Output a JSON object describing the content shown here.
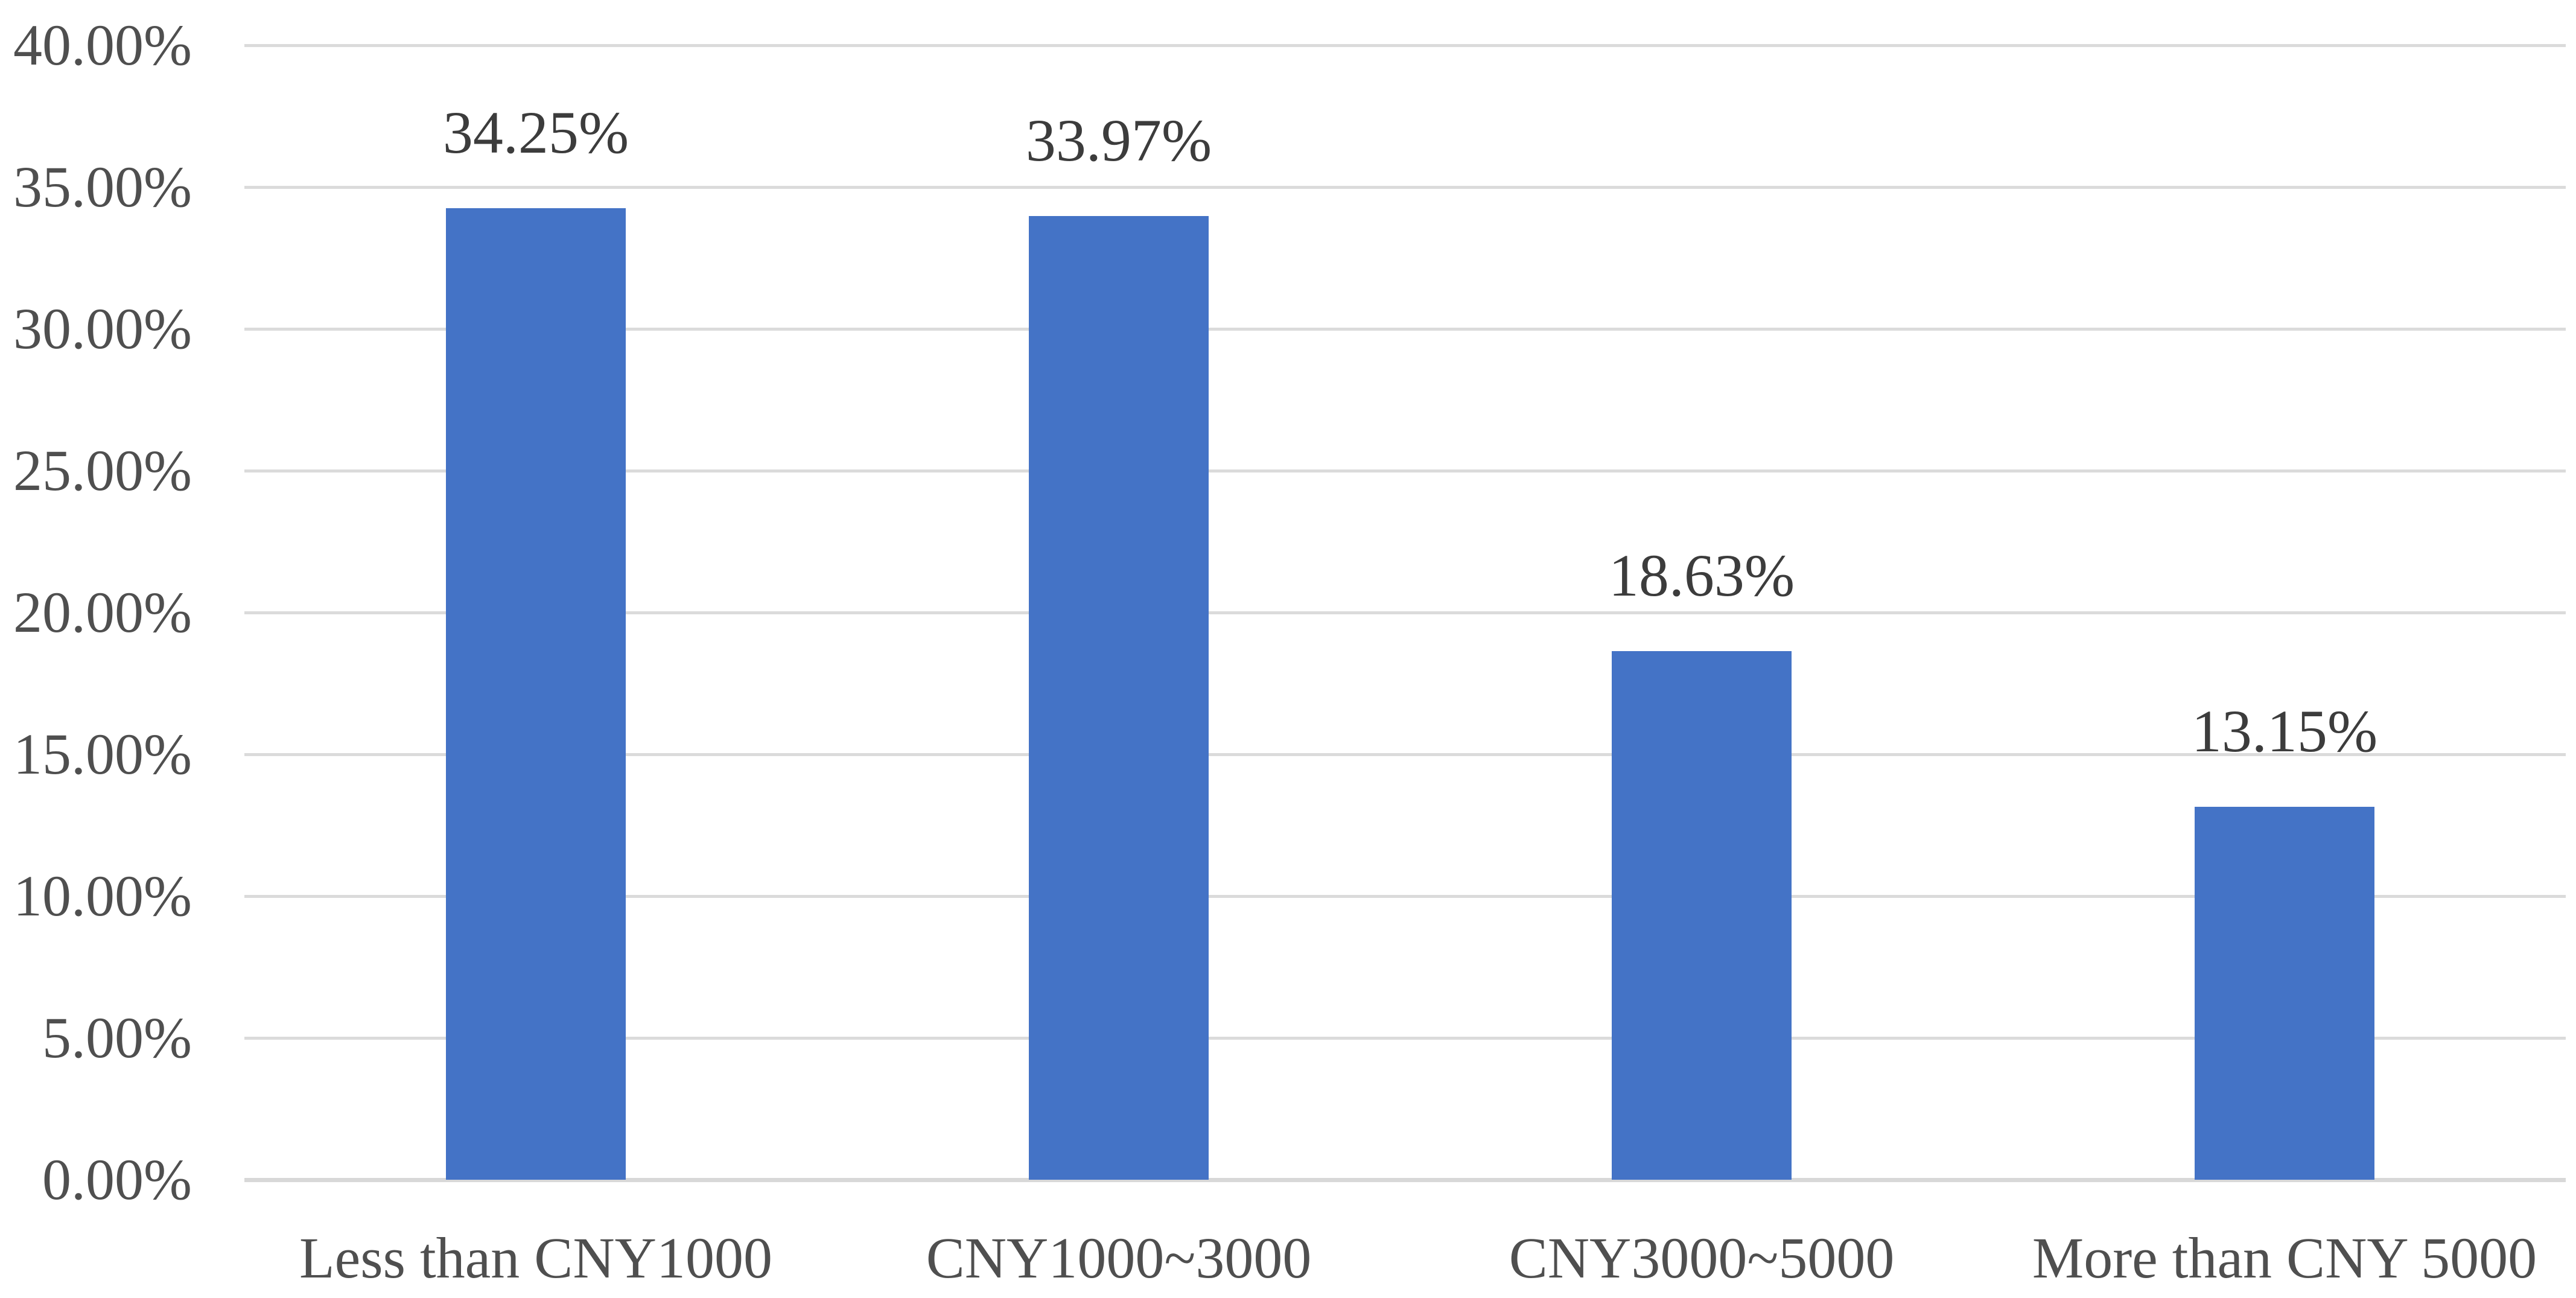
{
  "chart_data": {
    "type": "bar",
    "title": "",
    "xlabel": "",
    "ylabel": "",
    "categories": [
      "Less than CNY1000",
      "CNY1000~3000",
      "CNY3000~5000",
      "More than CNY 5000"
    ],
    "values": [
      34.25,
      33.97,
      18.63,
      13.15
    ],
    "data_labels": [
      "34.25%",
      "33.97%",
      "18.63%",
      "13.15%"
    ],
    "y_tick_values": [
      40,
      35,
      30,
      25,
      20,
      15,
      10,
      5,
      0
    ],
    "y_tick_labels": [
      "40.00%",
      "35.00%",
      "30.00%",
      "25.00%",
      "20.00%",
      "15.00%",
      "10.00%",
      "5.00%",
      "0.00%"
    ],
    "ylim": [
      0,
      40
    ],
    "grid": true,
    "legend": "none",
    "colors": {
      "bar_fill": "#4473C6",
      "gridline": "#DBDBDB",
      "axis_line": "#D8D8D8",
      "tick_label_text": "#4F4F4F",
      "category_label_text": "#4F4F4F",
      "data_label_text": "#3C3C3C",
      "background": "#FFFFFF"
    }
  }
}
